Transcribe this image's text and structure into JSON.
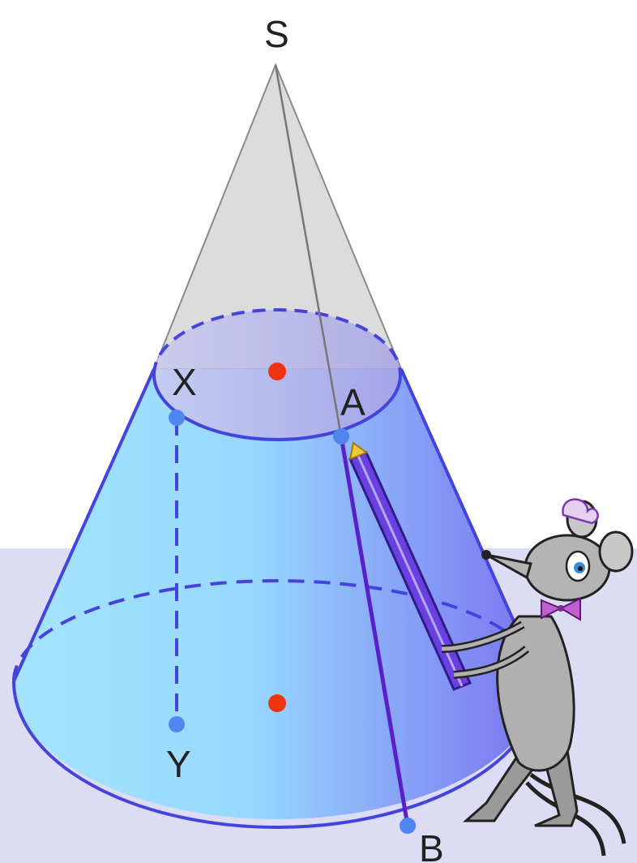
{
  "labels": {
    "apex": "S",
    "top_left_point": "X",
    "top_right_point": "A",
    "bottom_point": "Y",
    "base_point": "B"
  },
  "colors": {
    "plane": "#dcdcf4",
    "upper_cone": "#dcdcdc",
    "frustum_light": "#9fe0ff",
    "frustum_dark": "#7f78ef",
    "outline": "#4444dd",
    "edge_gray": "#777777",
    "point_blue": "#4f86f0",
    "center_red": "#ee3311",
    "segment_purple": "#5a1fc8",
    "pencil": "#6a40e0"
  },
  "icons": {
    "character": "mouse-illustration",
    "tool": "pencil-icon"
  }
}
